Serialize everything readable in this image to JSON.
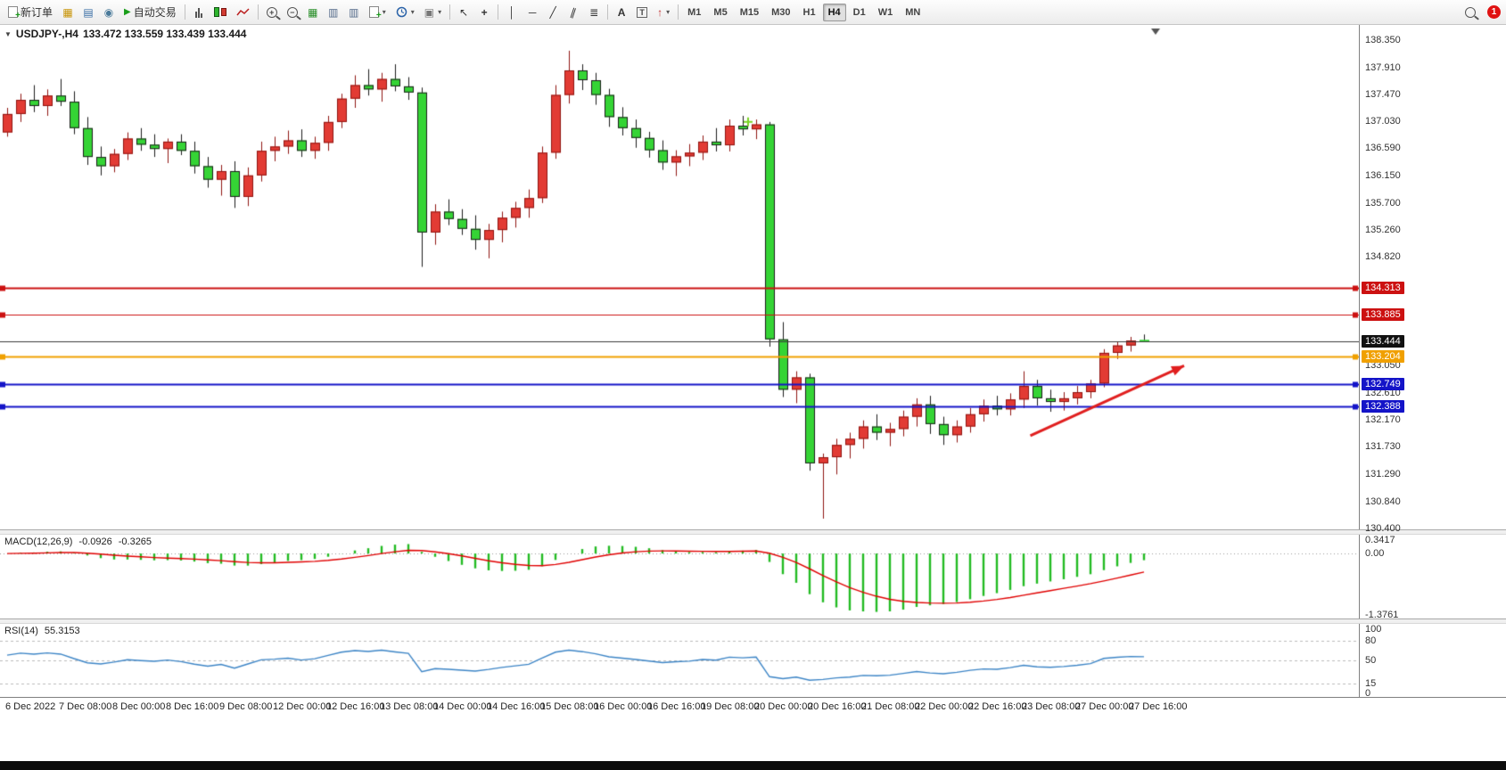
{
  "toolbar": {
    "new_order": "新订单",
    "auto_trading": "自动交易",
    "timeframes": [
      "M1",
      "M5",
      "M15",
      "M30",
      "H1",
      "H4",
      "D1",
      "W1",
      "MN"
    ],
    "active_timeframe": "H4",
    "notification_count": "1"
  },
  "icons": {
    "symbol_dropdown": "▼",
    "market_watch": "▦",
    "data_window": "▤",
    "navigator": "◉",
    "auto_play": "▶",
    "zoom_in": "+",
    "zoom_out": "−",
    "tile_windows": "▦",
    "panel_a": "▥",
    "panel_b": "▥",
    "template": "▣",
    "cursor": "↖",
    "crosshair": "+",
    "vline": "│",
    "hline": "─",
    "trendline": "╱",
    "channel": "∥",
    "fibonacci": "≣",
    "text": "A",
    "label": "T",
    "arrow_tool": "↑",
    "dropdown": "▾",
    "doc_plus": "+"
  },
  "chart_header": {
    "symbol": "USDJPY-,H4",
    "ohlc": "133.472 133.559 133.439 133.444"
  },
  "chart_data": {
    "type": "candlestick",
    "symbol": "USDJPY-",
    "timeframe": "H4",
    "view": {
      "price_max": 138.6,
      "price_min": 130.385
    },
    "colors": {
      "up_fill": "#e23b34",
      "up_edge": "#8f1410",
      "down_fill": "#35d435",
      "down_edge": "#1b1b1b",
      "macd_hist": "#22bb22",
      "macd_signal": "#e00000",
      "rsi_line": "#3d85c6"
    },
    "ohlc": [
      [
        136.85,
        137.25,
        136.78,
        137.15
      ],
      [
        137.15,
        137.48,
        137.02,
        137.38
      ],
      [
        137.38,
        137.62,
        137.18,
        137.28
      ],
      [
        137.28,
        137.55,
        137.12,
        137.45
      ],
      [
        137.45,
        137.72,
        137.28,
        137.35
      ],
      [
        137.35,
        137.52,
        136.82,
        136.92
      ],
      [
        136.92,
        137.1,
        136.32,
        136.45
      ],
      [
        136.45,
        136.62,
        136.15,
        136.3
      ],
      [
        136.3,
        136.58,
        136.2,
        136.5
      ],
      [
        136.5,
        136.85,
        136.4,
        136.75
      ],
      [
        136.75,
        136.92,
        136.55,
        136.65
      ],
      [
        136.65,
        136.82,
        136.45,
        136.58
      ],
      [
        136.58,
        136.75,
        136.35,
        136.7
      ],
      [
        136.7,
        136.82,
        136.48,
        136.55
      ],
      [
        136.55,
        136.7,
        136.18,
        136.3
      ],
      [
        136.3,
        136.45,
        135.95,
        136.08
      ],
      [
        136.08,
        136.32,
        135.82,
        136.22
      ],
      [
        136.22,
        136.38,
        135.62,
        135.8
      ],
      [
        135.8,
        136.28,
        135.65,
        136.15
      ],
      [
        136.15,
        136.7,
        136.05,
        136.55
      ],
      [
        136.55,
        136.78,
        136.38,
        136.62
      ],
      [
        136.62,
        136.88,
        136.5,
        136.72
      ],
      [
        136.72,
        136.9,
        136.45,
        136.55
      ],
      [
        136.55,
        136.78,
        136.42,
        136.68
      ],
      [
        136.68,
        137.12,
        136.55,
        137.02
      ],
      [
        137.02,
        137.48,
        136.92,
        137.4
      ],
      [
        137.4,
        137.78,
        137.25,
        137.62
      ],
      [
        137.62,
        137.88,
        137.45,
        137.55
      ],
      [
        137.55,
        137.82,
        137.35,
        137.72
      ],
      [
        137.72,
        137.96,
        137.52,
        137.6
      ],
      [
        137.6,
        137.75,
        137.38,
        137.5
      ],
      [
        137.5,
        137.58,
        134.66,
        135.22
      ],
      [
        135.22,
        135.68,
        135.02,
        135.56
      ],
      [
        135.56,
        135.76,
        135.34,
        135.44
      ],
      [
        135.44,
        135.6,
        135.18,
        135.28
      ],
      [
        135.28,
        135.5,
        134.94,
        135.1
      ],
      [
        135.1,
        135.36,
        134.8,
        135.26
      ],
      [
        135.26,
        135.56,
        135.06,
        135.46
      ],
      [
        135.46,
        135.72,
        135.3,
        135.62
      ],
      [
        135.62,
        135.92,
        135.46,
        135.78
      ],
      [
        135.78,
        136.62,
        135.7,
        136.52
      ],
      [
        136.52,
        137.62,
        136.42,
        137.46
      ],
      [
        137.46,
        138.18,
        137.32,
        137.86
      ],
      [
        137.86,
        137.96,
        137.54,
        137.7
      ],
      [
        137.7,
        137.82,
        137.3,
        137.46
      ],
      [
        137.46,
        137.56,
        136.94,
        137.1
      ],
      [
        137.1,
        137.26,
        136.8,
        136.92
      ],
      [
        136.92,
        137.06,
        136.6,
        136.76
      ],
      [
        136.76,
        136.86,
        136.44,
        136.56
      ],
      [
        136.56,
        136.72,
        136.24,
        136.36
      ],
      [
        136.36,
        136.56,
        136.14,
        136.46
      ],
      [
        136.46,
        136.66,
        136.3,
        136.52
      ],
      [
        136.52,
        136.8,
        136.4,
        136.7
      ],
      [
        136.7,
        136.92,
        136.54,
        136.64
      ],
      [
        136.64,
        137.06,
        136.54,
        136.96
      ],
      [
        136.96,
        137.12,
        136.8,
        136.9
      ],
      [
        136.9,
        137.06,
        136.74,
        136.98
      ],
      [
        136.98,
        137.02,
        133.36,
        133.48
      ],
      [
        133.48,
        133.76,
        132.54,
        132.66
      ],
      [
        132.66,
        132.96,
        132.44,
        132.86
      ],
      [
        132.86,
        132.92,
        131.34,
        131.46
      ],
      [
        131.46,
        131.62,
        130.56,
        131.56
      ],
      [
        131.56,
        131.86,
        131.28,
        131.76
      ],
      [
        131.76,
        131.96,
        131.54,
        131.86
      ],
      [
        131.86,
        132.16,
        131.7,
        132.06
      ],
      [
        132.06,
        132.26,
        131.84,
        131.96
      ],
      [
        131.96,
        132.12,
        131.74,
        132.02
      ],
      [
        132.02,
        132.32,
        131.9,
        132.22
      ],
      [
        132.22,
        132.52,
        132.06,
        132.42
      ],
      [
        132.42,
        132.56,
        131.94,
        132.1
      ],
      [
        132.1,
        132.22,
        131.76,
        131.92
      ],
      [
        131.92,
        132.16,
        131.8,
        132.06
      ],
      [
        132.06,
        132.36,
        131.96,
        132.26
      ],
      [
        132.26,
        132.5,
        132.14,
        132.4
      ],
      [
        132.4,
        132.56,
        132.24,
        132.34
      ],
      [
        132.34,
        132.6,
        132.24,
        132.5
      ],
      [
        132.5,
        132.96,
        132.36,
        132.72
      ],
      [
        132.72,
        132.82,
        132.4,
        132.52
      ],
      [
        132.52,
        132.66,
        132.3,
        132.46
      ],
      [
        132.46,
        132.62,
        132.32,
        132.52
      ],
      [
        132.52,
        132.72,
        132.42,
        132.62
      ],
      [
        132.62,
        132.82,
        132.52,
        132.76
      ],
      [
        132.76,
        133.32,
        132.7,
        133.26
      ],
      [
        133.26,
        133.44,
        133.16,
        133.38
      ],
      [
        133.38,
        133.52,
        133.28,
        133.46
      ],
      [
        133.472,
        133.559,
        133.439,
        133.444
      ]
    ],
    "time_labels": [
      "6 Dec 2022",
      "7 Dec 08:00",
      "8 Dec 00:00",
      "8 Dec 16:00",
      "9 Dec 08:00",
      "12 Dec 00:00",
      "12 Dec 16:00",
      "13 Dec 08:00",
      "14 Dec 00:00",
      "14 Dec 16:00",
      "15 Dec 08:00",
      "16 Dec 00:00",
      "16 Dec 16:00",
      "19 Dec 08:00",
      "20 Dec 00:00",
      "20 Dec 16:00",
      "21 Dec 08:00",
      "22 Dec 00:00",
      "22 Dec 16:00",
      "23 Dec 08:00",
      "27 Dec 00:00",
      "27 Dec 16:00"
    ],
    "label_every_n_candles": 4,
    "price_axis_ticks": [
      "138.350",
      "137.910",
      "137.470",
      "137.030",
      "136.590",
      "136.150",
      "135.700",
      "135.260",
      "134.820",
      "133.050",
      "132.610",
      "132.170",
      "131.730",
      "131.290",
      "130.840",
      "130.400"
    ],
    "price_lines": [
      {
        "price": 134.313,
        "label": "134.313",
        "color": "#cc1111",
        "width": 2,
        "anchors": true
      },
      {
        "price": 133.885,
        "label": "133.885",
        "color": "#cc1111",
        "width": 1,
        "anchors": true
      },
      {
        "price": 133.444,
        "label": "133.444",
        "color": "#3a3a3a",
        "width": 1,
        "anchors": false,
        "tag_bg": "#111111"
      },
      {
        "price": 133.204,
        "label": "133.204",
        "color": "#f0a000",
        "width": 2,
        "anchors": true
      },
      {
        "price": 132.749,
        "label": "132.749",
        "color": "#1414c8",
        "width": 2,
        "anchors": true
      },
      {
        "price": 132.388,
        "label": "132.388",
        "color": "#1414c8",
        "width": 2,
        "anchors": true
      }
    ],
    "plus_marker": {
      "candle": 55.4,
      "price": 137.02,
      "color": "#7ad425"
    },
    "annotation_arrow": {
      "from_candle": 76.5,
      "from_price": 131.91,
      "to_candle": 88,
      "to_price": 133.05,
      "color": "#e01f1f"
    },
    "macd": {
      "title": "MACD(12,26,9)",
      "value_main": "-0.0926",
      "value_signal": "-0.3265",
      "axis_max": 0.3417,
      "axis_min": -1.3761,
      "axis_ticks": [
        "0.3417",
        "0.00",
        "-1.3761"
      ]
    },
    "rsi": {
      "title": "RSI(14)",
      "value": "55.3153",
      "levels": [
        80,
        50,
        15
      ],
      "axis_ticks": [
        "100",
        "80",
        "50",
        "15",
        "0"
      ]
    }
  }
}
